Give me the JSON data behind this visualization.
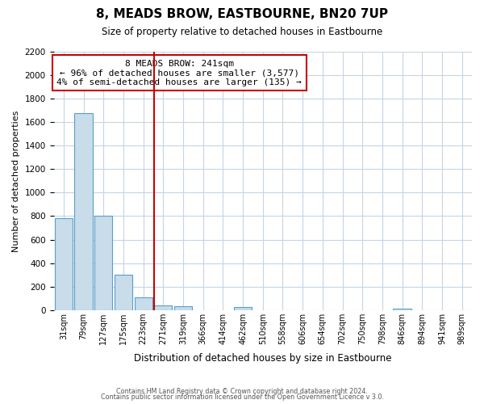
{
  "title": "8, MEADS BROW, EASTBOURNE, BN20 7UP",
  "subtitle": "Size of property relative to detached houses in Eastbourne",
  "xlabel": "Distribution of detached houses by size in Eastbourne",
  "ylabel": "Number of detached properties",
  "bar_color": "#c8dcea",
  "bar_edge_color": "#5a9ec9",
  "background_color": "#ffffff",
  "grid_color": "#c5d5e5",
  "annotation_line_color": "#cc0000",
  "annotation_box_text": "8 MEADS BROW: 241sqm\n← 96% of detached houses are smaller (3,577)\n4% of semi-detached houses are larger (135) →",
  "annotation_box_color": "#ffffff",
  "annotation_box_edge_color": "#cc0000",
  "categories": [
    "31sqm",
    "79sqm",
    "127sqm",
    "175sqm",
    "223sqm",
    "271sqm",
    "319sqm",
    "366sqm",
    "414sqm",
    "462sqm",
    "510sqm",
    "558sqm",
    "606sqm",
    "654sqm",
    "702sqm",
    "750sqm",
    "798sqm",
    "846sqm",
    "894sqm",
    "941sqm",
    "989sqm"
  ],
  "bar_centers": [
    0,
    1,
    2,
    3,
    4,
    5,
    6,
    7,
    8,
    9,
    10,
    11,
    12,
    13,
    14,
    15,
    16,
    17,
    18,
    19,
    20
  ],
  "bar_heights": [
    780,
    1680,
    800,
    300,
    110,
    40,
    30,
    0,
    0,
    25,
    0,
    0,
    0,
    0,
    0,
    0,
    0,
    10,
    0,
    0,
    0
  ],
  "annotation_line_bin": 4.54,
  "ylim": [
    0,
    2200
  ],
  "yticks": [
    0,
    200,
    400,
    600,
    800,
    1000,
    1200,
    1400,
    1600,
    1800,
    2000,
    2200
  ],
  "footer_line1": "Contains HM Land Registry data © Crown copyright and database right 2024.",
  "footer_line2": "Contains public sector information licensed under the Open Government Licence v 3.0."
}
